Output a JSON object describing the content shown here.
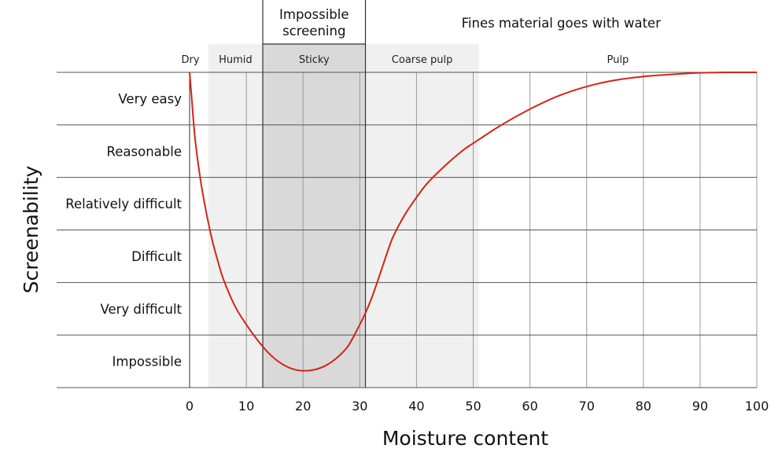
{
  "chart_data": {
    "type": "line",
    "title": "",
    "xlabel": "Moisture content",
    "ylabel": "Screenability",
    "xlim": [
      0,
      100
    ],
    "x_ticks": [
      0,
      10,
      20,
      30,
      40,
      50,
      60,
      70,
      80,
      90,
      100
    ],
    "y_categories": [
      "Impossible",
      "Very difficult",
      "Difficult",
      "Relatively difficult",
      "Reasonable",
      "Very easy"
    ],
    "grid": true,
    "line_color": "#d42418",
    "zones": [
      {
        "label": "Dry",
        "x_start": -3,
        "x_end": 3.3,
        "color": "#ffffff"
      },
      {
        "label": "Humid",
        "x_start": 3.3,
        "x_end": 12.9,
        "color": "#f0f0f0"
      },
      {
        "label": "Sticky",
        "x_start": 12.9,
        "x_end": 31,
        "color": "#d9d9d9"
      },
      {
        "label": "Coarse pulp",
        "x_start": 31,
        "x_end": 51,
        "color": "#f0f0f0"
      },
      {
        "label": "Pulp",
        "x_start": 51,
        "x_end": 100,
        "color": "#ffffff"
      }
    ],
    "top_annotations": [
      {
        "label": "Impossible screening",
        "lines": [
          "Impossible",
          "screening"
        ],
        "x_start": 12.9,
        "x_end": 31,
        "boxed": true
      },
      {
        "label": "Fines material goes with water",
        "x_start": 31,
        "x_end": 100,
        "boxed": false
      }
    ],
    "curve": {
      "x": [
        0,
        0.3,
        1,
        2,
        3,
        4,
        5,
        6,
        8,
        10,
        12,
        14,
        16,
        18,
        20,
        22,
        24,
        26,
        28,
        30,
        31,
        32,
        33,
        34,
        35,
        36,
        38,
        40,
        42,
        45,
        48,
        50,
        55,
        60,
        65,
        70,
        75,
        80,
        85,
        90,
        95,
        100
      ],
      "y": [
        6.0,
        5.6,
        4.7,
        3.9,
        3.3,
        2.8,
        2.4,
        2.05,
        1.55,
        1.2,
        0.9,
        0.65,
        0.47,
        0.36,
        0.32,
        0.34,
        0.42,
        0.57,
        0.8,
        1.2,
        1.42,
        1.68,
        1.98,
        2.3,
        2.62,
        2.9,
        3.3,
        3.62,
        3.9,
        4.22,
        4.5,
        4.65,
        5.0,
        5.3,
        5.55,
        5.73,
        5.85,
        5.92,
        5.96,
        5.99,
        6.0,
        6.0
      ]
    }
  }
}
